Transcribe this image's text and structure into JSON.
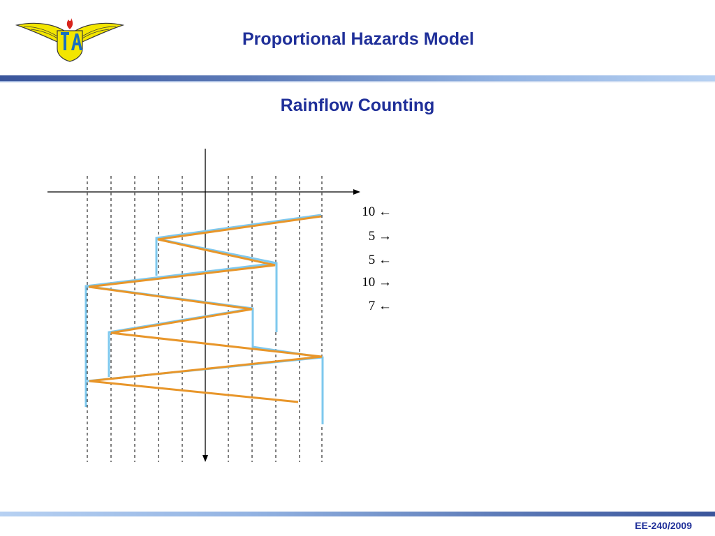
{
  "header": {
    "title": "Proportional Hazards Model"
  },
  "logo": {
    "text": "ITA",
    "icon": "ita-wings-logo-icon"
  },
  "slide": {
    "subtitle": "Rainflow Counting"
  },
  "diagram": {
    "counts": [
      {
        "value": "10",
        "arrow": "←"
      },
      {
        "value": "5",
        "arrow": "→"
      },
      {
        "value": "5",
        "arrow": "←"
      },
      {
        "value": "10",
        "arrow": "→"
      },
      {
        "value": "7",
        "arrow": "←"
      }
    ],
    "colors": {
      "load_history": "#e8962a",
      "rainflow_paths": "#7ec8ee",
      "axes": "#000000",
      "gridlines": "#000000"
    }
  },
  "footer": {
    "label": "EE-240/2009"
  },
  "colors": {
    "title": "#1f2f99",
    "bar_dark": "#3a559b",
    "bar_light": "#b7d1f2"
  }
}
